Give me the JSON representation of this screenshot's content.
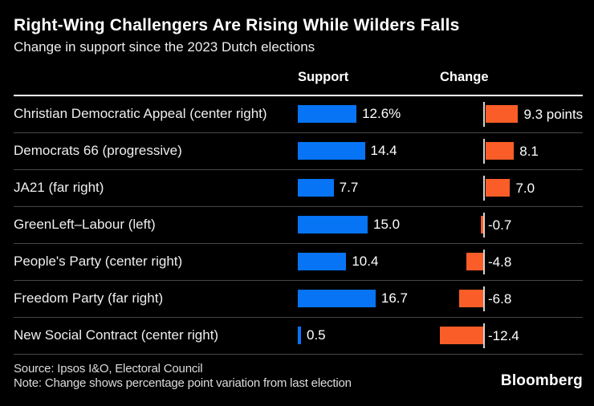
{
  "header": {
    "title": "Right-Wing Challengers Are Rising While Wilders Falls",
    "subtitle": "Change in support since the 2023 Dutch elections"
  },
  "chart_data": {
    "type": "bar",
    "orientation": "horizontal",
    "columns": {
      "support": "Support",
      "change": "Change"
    },
    "rows": [
      {
        "party": "Christian Democratic Appeal (center right)",
        "support": 12.6,
        "support_label": "12.6%",
        "change": 9.3,
        "change_label": "9.3 points"
      },
      {
        "party": "Democrats 66 (progressive)",
        "support": 14.4,
        "support_label": "14.4",
        "change": 8.1,
        "change_label": "8.1"
      },
      {
        "party": "JA21 (far right)",
        "support": 7.7,
        "support_label": "7.7",
        "change": 7.0,
        "change_label": "7.0"
      },
      {
        "party": "GreenLeft–Labour (left)",
        "support": 15.0,
        "support_label": "15.0",
        "change": -0.7,
        "change_label": "-0.7"
      },
      {
        "party": "People's Party (center right)",
        "support": 10.4,
        "support_label": "10.4",
        "change": -4.8,
        "change_label": "-4.8"
      },
      {
        "party": "Freedom Party (far right)",
        "support": 16.7,
        "support_label": "16.7",
        "change": -6.8,
        "change_label": "-6.8"
      },
      {
        "party": "New Social Contract (center right)",
        "support": 0.5,
        "support_label": "0.5",
        "change": -12.4,
        "change_label": "-12.4"
      }
    ],
    "colors": {
      "support_bar": "#0674f5",
      "change_bar": "#fa5d28",
      "axis_tick": "#d2d2d2",
      "background": "#000000"
    }
  },
  "footer": {
    "source": "Source: Ipsos I&O, Electoral Council",
    "note": "Note: Change shows percentage point variation from last election",
    "brand": "Bloomberg"
  }
}
